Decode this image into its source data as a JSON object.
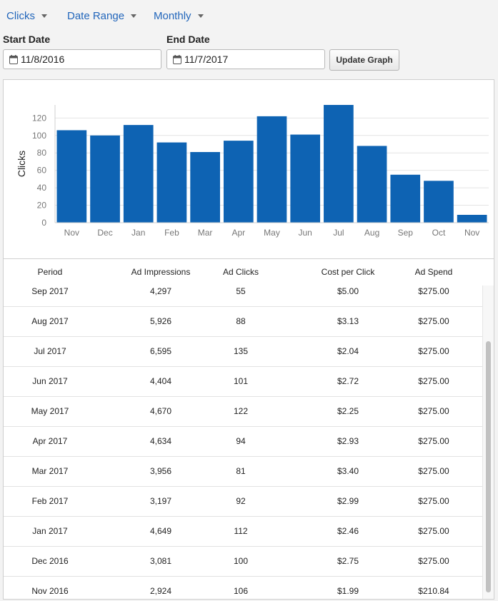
{
  "toolbar": {
    "metric_label": "Clicks",
    "range_label": "Date Range",
    "interval_label": "Monthly",
    "start_label": "Start Date",
    "start_value": "11/8/2016",
    "end_label": "End Date",
    "end_value": "11/7/2017",
    "update_label": "Update Graph"
  },
  "chart_data": {
    "type": "bar",
    "ylabel": "Clicks",
    "xlabel": "",
    "categories": [
      "Nov",
      "Dec",
      "Jan",
      "Feb",
      "Mar",
      "Apr",
      "May",
      "Jun",
      "Jul",
      "Aug",
      "Sep",
      "Oct",
      "Nov"
    ],
    "values": [
      106,
      100,
      112,
      92,
      81,
      94,
      122,
      101,
      135,
      88,
      55,
      48,
      9
    ],
    "ylim": [
      0,
      135
    ],
    "yticks": [
      0,
      20,
      40,
      60,
      80,
      100,
      120
    ],
    "grid": true,
    "bar_color": "#0e63b3"
  },
  "table": {
    "headers": [
      "Period",
      "Ad Impressions",
      "Ad Clicks",
      "Cost per Click",
      "Ad Spend"
    ],
    "rows": [
      [
        "Sep 2017",
        "4,297",
        "55",
        "$5.00",
        "$275.00"
      ],
      [
        "Aug 2017",
        "5,926",
        "88",
        "$3.13",
        "$275.00"
      ],
      [
        "Jul 2017",
        "6,595",
        "135",
        "$2.04",
        "$275.00"
      ],
      [
        "Jun 2017",
        "4,404",
        "101",
        "$2.72",
        "$275.00"
      ],
      [
        "May 2017",
        "4,670",
        "122",
        "$2.25",
        "$275.00"
      ],
      [
        "Apr 2017",
        "4,634",
        "94",
        "$2.93",
        "$275.00"
      ],
      [
        "Mar 2017",
        "3,956",
        "81",
        "$3.40",
        "$275.00"
      ],
      [
        "Feb 2017",
        "3,197",
        "92",
        "$2.99",
        "$275.00"
      ],
      [
        "Jan 2017",
        "4,649",
        "112",
        "$2.46",
        "$275.00"
      ],
      [
        "Dec 2016",
        "3,081",
        "100",
        "$2.75",
        "$275.00"
      ],
      [
        "Nov 2016",
        "2,924",
        "106",
        "$1.99",
        "$210.84"
      ]
    ]
  }
}
